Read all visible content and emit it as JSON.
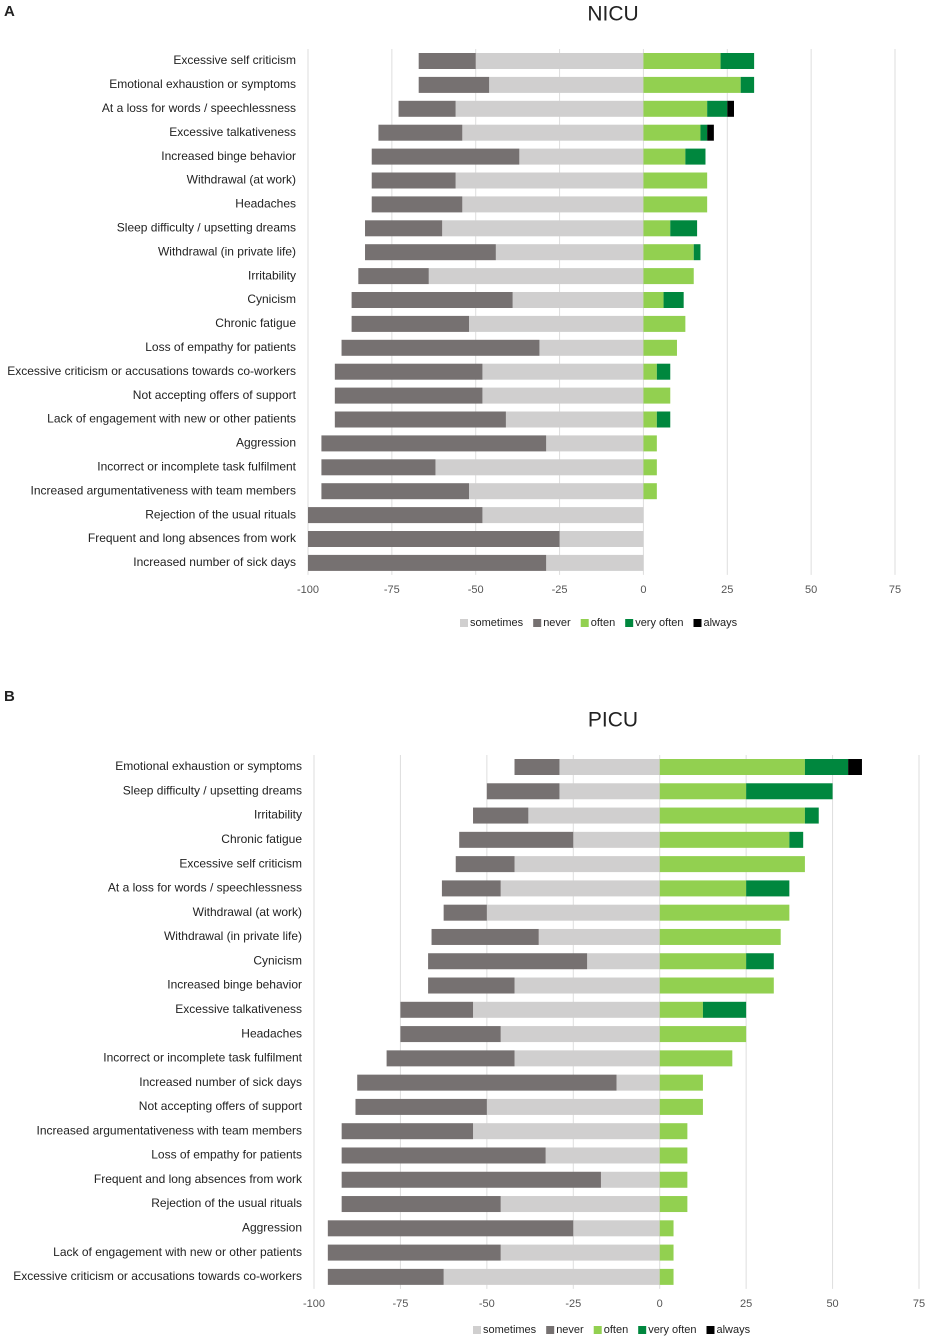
{
  "chart_data": [
    {
      "type": "diverging_bar",
      "panel": "A",
      "title": "NICU",
      "categories": [
        "Excessive self criticism",
        "Emotional exhaustion or symptoms",
        "At a loss for words / speechlessness",
        "Excessive talkativeness",
        "Increased binge behavior",
        "Withdrawal (at work)",
        "Headaches",
        "Sleep difficulty / upsetting dreams",
        "Withdrawal (in private life)",
        "Irritability",
        "Cynicism",
        "Chronic fatigue",
        "Loss of empathy for patients",
        "Excessive criticism or accusations towards co-workers",
        "Not accepting offers of support",
        "Lack of engagement with new or other patients",
        "Aggression",
        "Incorrect or incomplete task fulfilment",
        "Increased argumentativeness with team members",
        "Rejection of the usual rituals",
        "Frequent and long absences from work",
        "Increased number of sick days"
      ],
      "series": [
        {
          "name": "sometimes",
          "color": "#d0cfcf",
          "values": [
            -50,
            -46,
            -56,
            -54,
            -37,
            -56,
            -54,
            -60,
            -44,
            -64,
            -39,
            -52,
            -31,
            -48,
            -48,
            -41,
            -29,
            -62,
            -52,
            -48,
            -25,
            -29
          ]
        },
        {
          "name": "never",
          "color": "#767171",
          "values": [
            -17,
            -21,
            -17,
            -25,
            -44,
            -25,
            -27,
            -23,
            -39,
            -21,
            -48,
            -35,
            -59,
            -44,
            -44,
            -51,
            -67,
            -34,
            -44,
            -52,
            -75,
            -71
          ]
        },
        {
          "name": "often",
          "color": "#92d050",
          "values": [
            23,
            29,
            19,
            17,
            12.5,
            19,
            19,
            8,
            15,
            15,
            6,
            12.5,
            10,
            4,
            8,
            4,
            4,
            4,
            4,
            0,
            0,
            0
          ]
        },
        {
          "name": "very often",
          "color": "#00873e",
          "values": [
            10,
            4,
            6,
            2,
            6,
            0,
            0,
            8,
            2,
            0,
            6,
            0,
            0,
            4,
            0,
            4,
            0,
            0,
            0,
            0,
            0,
            0
          ]
        },
        {
          "name": "always",
          "color": "#000000",
          "values": [
            0,
            0,
            2,
            2,
            0,
            0,
            0,
            0,
            0,
            0,
            0,
            0,
            0,
            0,
            0,
            0,
            0,
            0,
            0,
            0,
            0,
            0
          ]
        }
      ],
      "xlim": [
        -100,
        75
      ],
      "xticks": [
        -100,
        -75,
        -50,
        -25,
        0,
        25,
        50,
        75
      ],
      "grid": true,
      "legend": "bottom"
    },
    {
      "type": "diverging_bar",
      "panel": "B",
      "title": "PICU",
      "categories": [
        "Emotional exhaustion or symptoms",
        "Sleep difficulty / upsetting dreams",
        "Irritability",
        "Chronic fatigue",
        "Excessive self criticism",
        "At a loss for words / speechlessness",
        "Withdrawal (at work)",
        "Withdrawal (in private life)",
        "Cynicism",
        "Increased binge behavior",
        "Excessive talkativeness",
        "Headaches",
        "Incorrect or incomplete task fulfilment",
        "Increased number of sick days",
        "Not accepting offers of support",
        "Increased argumentativeness with team members",
        "Loss of empathy for patients",
        "Frequent and long absences from work",
        "Rejection of the usual rituals",
        "Aggression",
        "Lack of engagement with new or other patients",
        "Excessive criticism or accusations towards co-workers"
      ],
      "series": [
        {
          "name": "sometimes",
          "color": "#d0cfcf",
          "values": [
            -29,
            -29,
            -38,
            -25,
            -42,
            -46,
            -50,
            -35,
            -21,
            -42,
            -54,
            -46,
            -42,
            -12.5,
            -50,
            -54,
            -33,
            -17,
            -46,
            -25,
            -46,
            -62.5
          ]
        },
        {
          "name": "never",
          "color": "#767171",
          "values": [
            -13,
            -21,
            -16,
            -33,
            -17,
            -17,
            -12.5,
            -31,
            -46,
            -25,
            -21,
            -29,
            -37,
            -75,
            -38,
            -38,
            -59,
            -75,
            -46,
            -71,
            -50,
            -33.5
          ]
        },
        {
          "name": "often",
          "color": "#92d050",
          "values": [
            42,
            25,
            42,
            37.5,
            42,
            25,
            37.5,
            35,
            25,
            33,
            12.5,
            25,
            21,
            12.5,
            12.5,
            8,
            8,
            8,
            8,
            4,
            4,
            4
          ]
        },
        {
          "name": "very often",
          "color": "#00873e",
          "values": [
            12.5,
            25,
            4,
            4,
            0,
            12.5,
            0,
            0,
            8,
            0,
            12.5,
            0,
            0,
            0,
            0,
            0,
            0,
            0,
            0,
            0,
            0,
            0
          ]
        },
        {
          "name": "always",
          "color": "#000000",
          "values": [
            4,
            0,
            0,
            0,
            0,
            0,
            0,
            0,
            0,
            0,
            0,
            0,
            0,
            0,
            0,
            0,
            0,
            0,
            0,
            0,
            0,
            0
          ]
        }
      ],
      "xlim": [
        -100,
        75
      ],
      "xticks": [
        -100,
        -75,
        -50,
        -25,
        0,
        25,
        50,
        75
      ],
      "grid": true,
      "legend": "bottom"
    }
  ]
}
